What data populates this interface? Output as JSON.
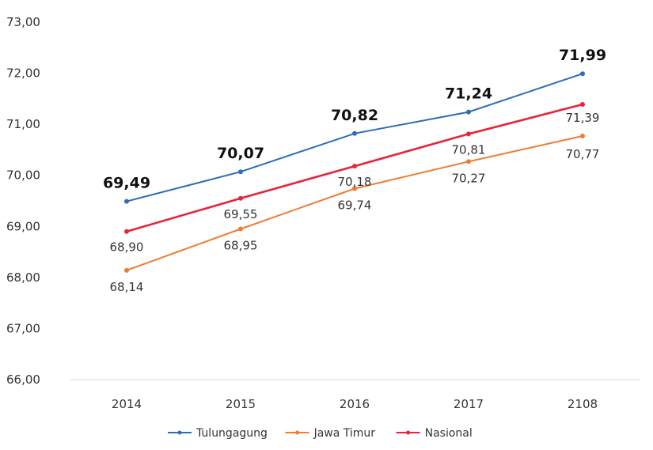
{
  "chart_data": {
    "type": "line",
    "title": "",
    "xlabel": "",
    "ylabel": "",
    "categories": [
      "2014",
      "2015",
      "2016",
      "2017",
      "2108"
    ],
    "ylim": [
      66,
      73
    ],
    "y_ticks": [
      "66,00",
      "67,00",
      "68,00",
      "69,00",
      "70,00",
      "71,00",
      "72,00",
      "73,00"
    ],
    "grid": false,
    "legend_position": "bottom",
    "series": [
      {
        "name": "Tulungagung",
        "values": [
          69.49,
          70.07,
          70.82,
          71.24,
          71.99
        ],
        "labels": [
          "69,49",
          "70,07",
          "70,82",
          "71,24",
          "71,99"
        ],
        "color": "#2E6DB4"
      },
      {
        "name": "Jawa Timur",
        "values": [
          68.14,
          68.95,
          69.74,
          70.27,
          70.77
        ],
        "labels": [
          "68,14",
          "68,95",
          "69,74",
          "70,27",
          "70,77"
        ],
        "color": "#ED7D31"
      },
      {
        "name": "Nasional",
        "values": [
          68.9,
          69.55,
          70.18,
          70.81,
          71.39
        ],
        "labels": [
          "68,90",
          "69,55",
          "70,18",
          "70,81",
          "71,39"
        ],
        "color": "#E8233A"
      }
    ]
  }
}
